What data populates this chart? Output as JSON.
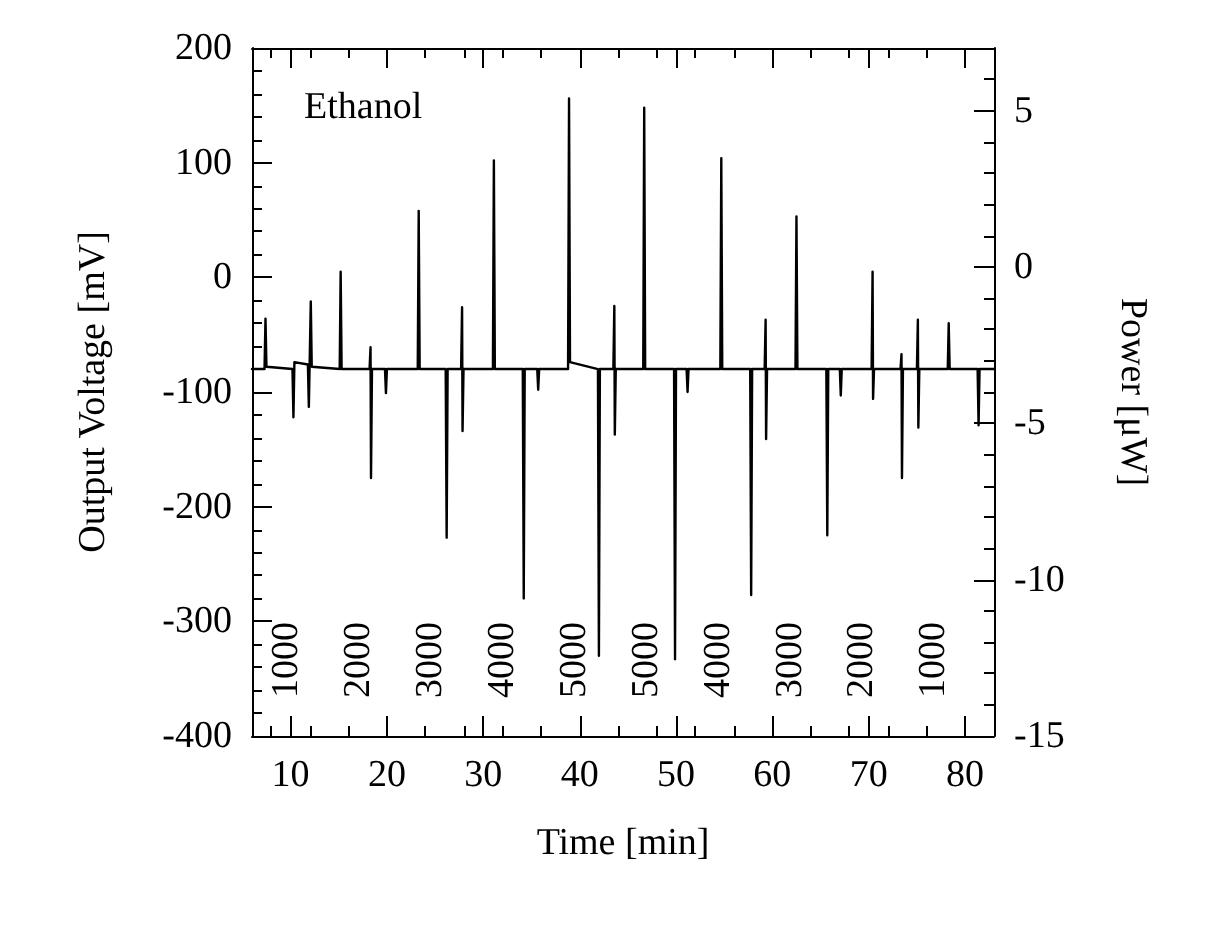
{
  "chart_data": {
    "type": "line",
    "xlabel": "Time [min]",
    "ylabel": "Output Voltage [mV]",
    "y2label": "Power [μW]",
    "x": [
      6,
      7.3,
      7.4,
      7.5,
      10.2,
      10.3,
      10.4,
      11.8,
      11.9,
      12.1,
      12.2,
      15.1,
      15.2,
      15.3,
      18.2,
      18.3,
      18.35,
      18.45,
      19.8,
      19.9,
      20.0,
      23.2,
      23.3,
      23.4,
      26.1,
      26.2,
      26.3,
      27.7,
      27.8,
      27.85,
      27.95,
      31.0,
      31.1,
      31.2,
      34.1,
      34.2,
      34.3,
      35.6,
      35.7,
      35.8,
      38.8,
      38.9,
      39.0,
      41.9,
      42.0,
      42.1,
      43.5,
      43.6,
      43.65,
      43.75,
      46.6,
      46.7,
      46.8,
      49.8,
      49.9,
      50.0,
      51.1,
      51.2,
      51.3,
      54.6,
      54.7,
      54.8,
      57.7,
      57.8,
      57.9,
      59.2,
      59.3,
      59.35,
      59.45,
      62.4,
      62.5,
      62.6,
      65.6,
      65.7,
      65.8,
      67.0,
      67.1,
      67.2,
      70.3,
      70.4,
      70.45,
      70.55,
      73.3,
      73.4,
      73.45,
      73.55,
      75.0,
      75.1,
      75.15,
      75.25,
      78.2,
      78.3,
      78.4,
      81.3,
      81.4,
      81.5,
      83
    ],
    "series": [
      {
        "color": "#000000",
        "values": [
          -80,
          -80,
          -36,
          -78,
          -80,
          -122,
          -74,
          -76,
          -113,
          -21,
          -78,
          -80,
          5,
          -80,
          -80,
          -61,
          -175,
          -80,
          -80,
          -101,
          -80,
          -80,
          58,
          -80,
          -80,
          -227,
          -80,
          -80,
          -26,
          -134,
          -80,
          -80,
          102,
          -80,
          -80,
          -280,
          -80,
          -80,
          -98,
          -80,
          -80,
          156,
          -74,
          -80,
          -330,
          -80,
          -80,
          -25,
          -137,
          -80,
          -80,
          148,
          -80,
          -80,
          -333,
          -80,
          -80,
          -100,
          -80,
          -80,
          104,
          -80,
          -80,
          -277,
          -80,
          -80,
          -37,
          -141,
          -80,
          -80,
          53,
          -80,
          -80,
          -225,
          -80,
          -80,
          -103,
          -80,
          -80,
          5,
          -106,
          -80,
          -80,
          -67,
          -175,
          -80,
          -80,
          -37,
          -131,
          -80,
          -80,
          -40,
          -80,
          -80,
          -129,
          -80,
          -80
        ]
      }
    ],
    "xlim": [
      6,
      83
    ],
    "xticks": [
      10,
      20,
      30,
      40,
      50,
      60,
      70,
      80
    ],
    "ylim": [
      -400,
      200
    ],
    "yticks": [
      -400,
      -300,
      -200,
      -100,
      0,
      100,
      200
    ],
    "y2lim": [
      -15,
      7
    ],
    "y2ticks": [
      -15,
      -10,
      -5,
      0,
      5
    ],
    "grid": false,
    "marker": "none",
    "line_style": "solid",
    "annotations": [
      "Ethanol",
      "1000",
      "2000",
      "3000",
      "4000",
      "5000",
      "5000",
      "4000",
      "3000",
      "2000",
      "1000"
    ]
  }
}
